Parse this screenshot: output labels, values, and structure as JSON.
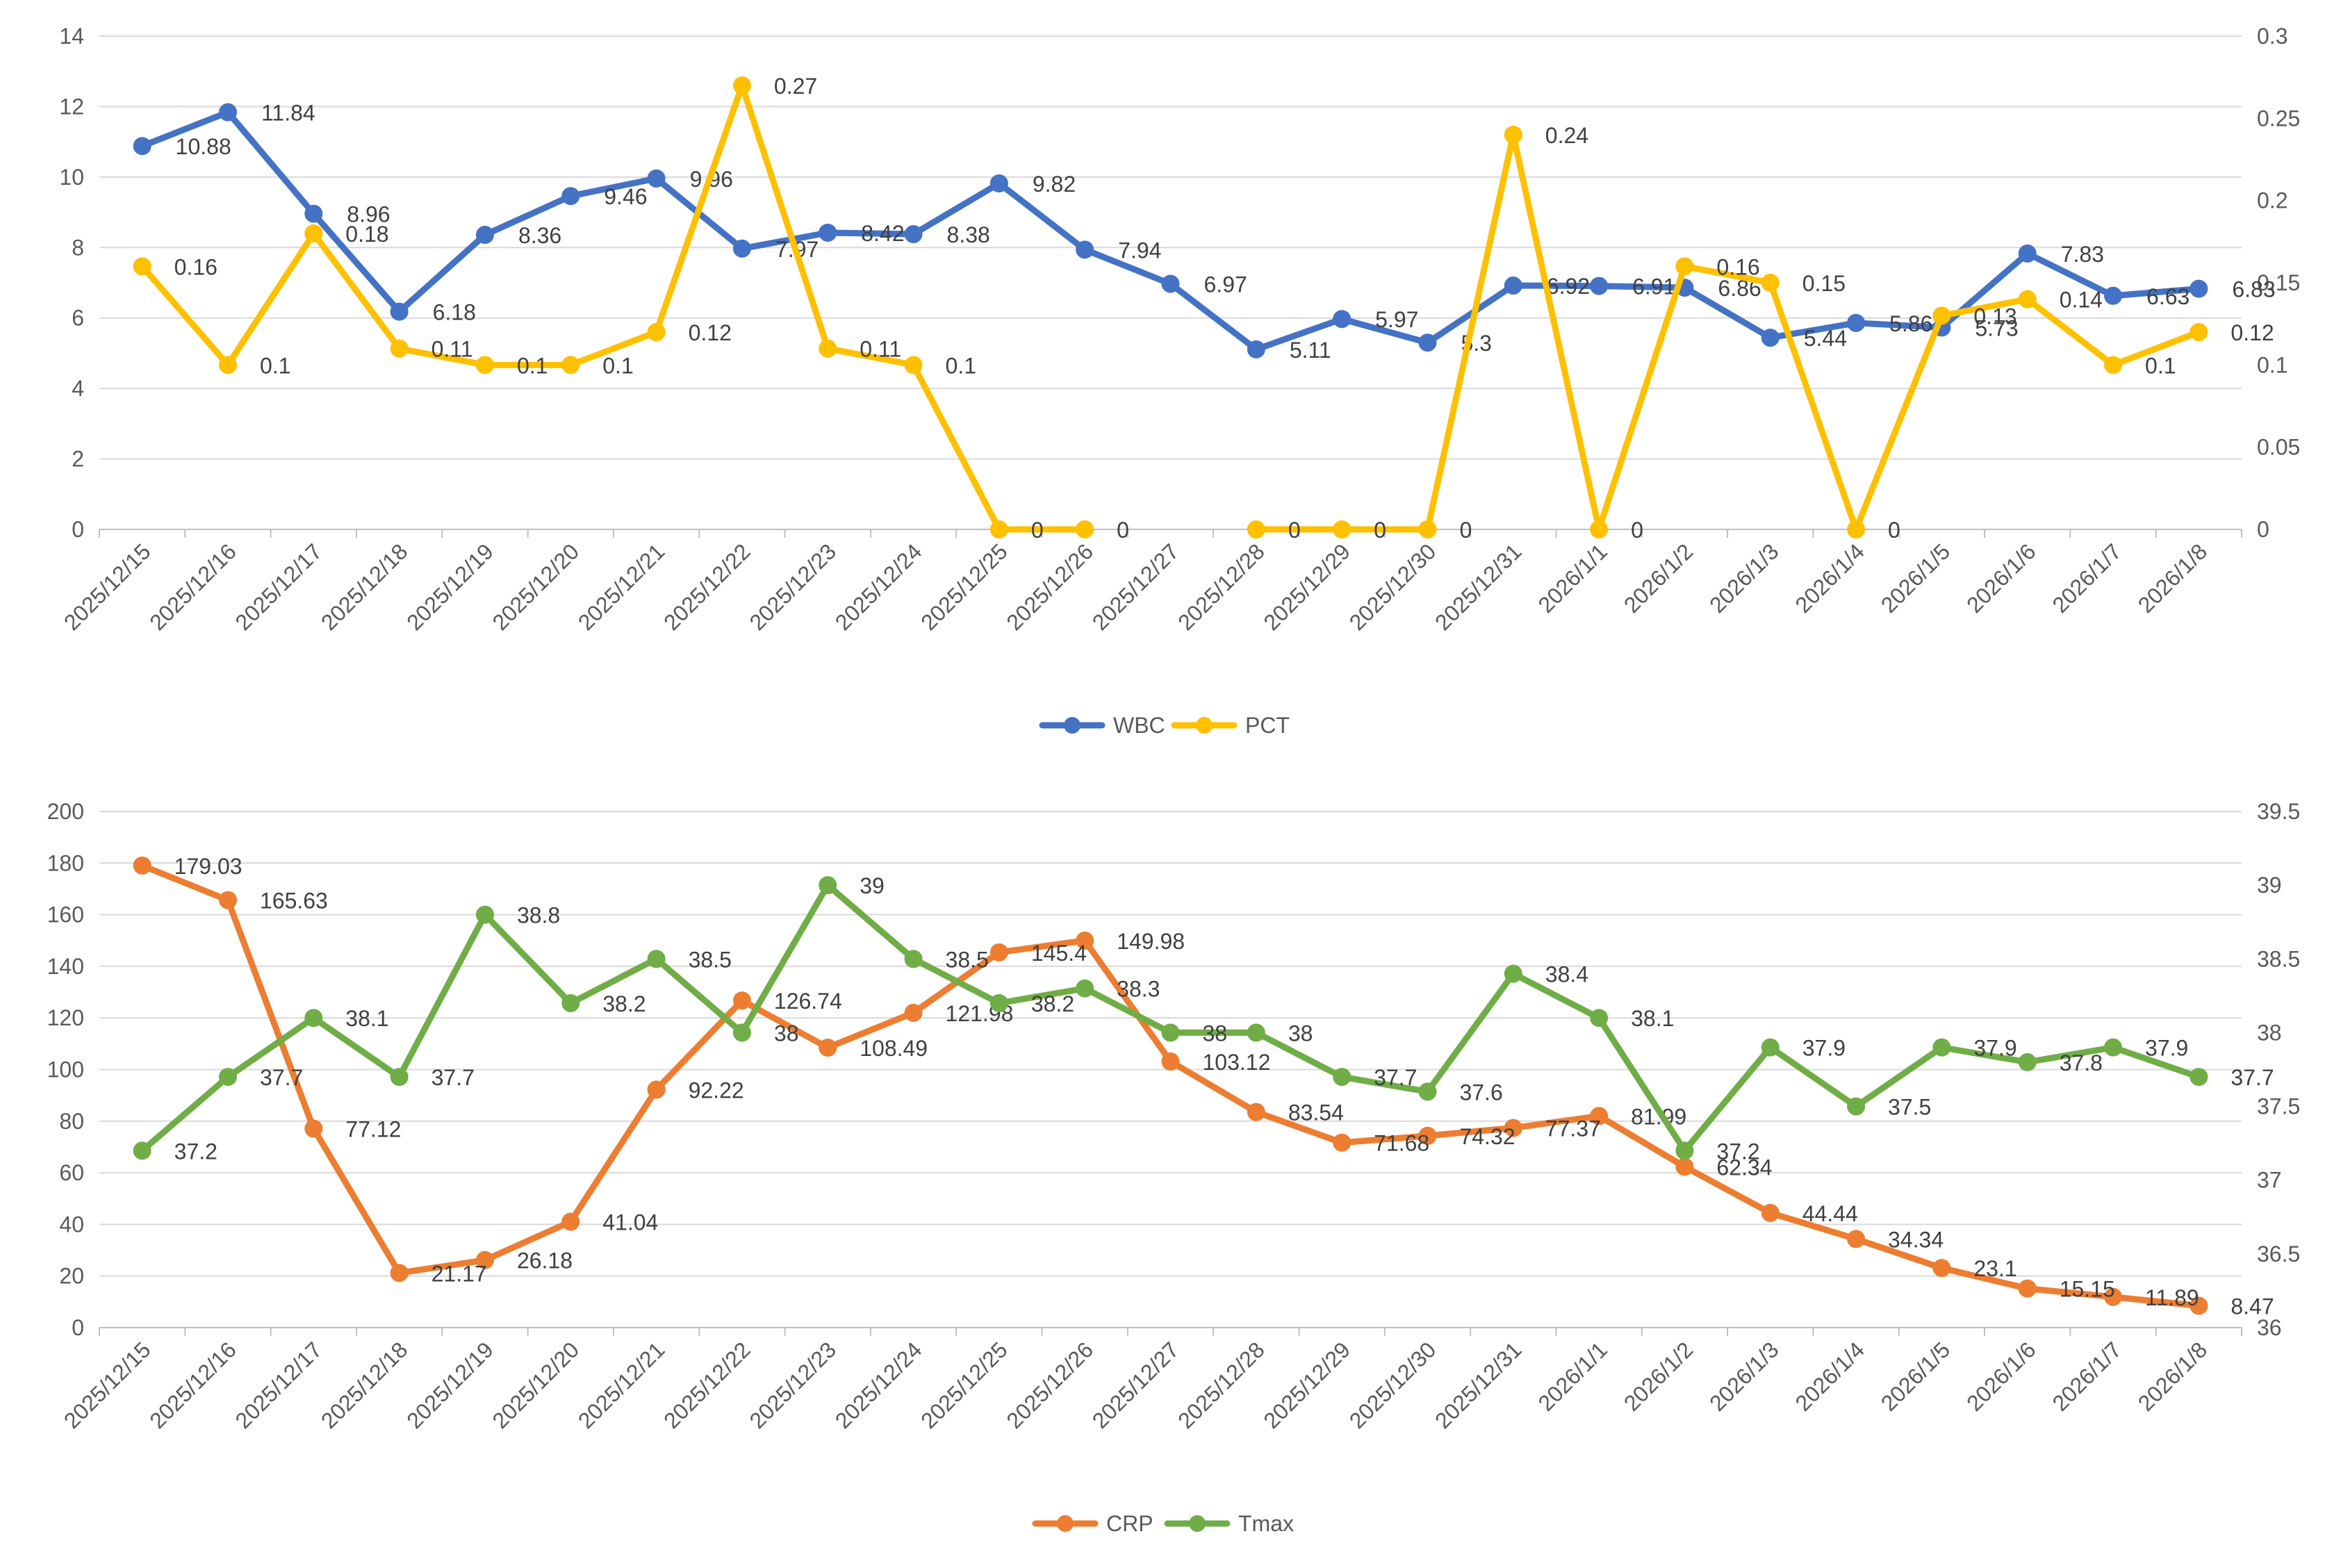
{
  "chart_data": [
    {
      "type": "line",
      "title": "",
      "categories": [
        "2025/12/15",
        "2025/12/16",
        "2025/12/17",
        "2025/12/18",
        "2025/12/19",
        "2025/12/20",
        "2025/12/21",
        "2025/12/22",
        "2025/12/23",
        "2025/12/24",
        "2025/12/25",
        "2025/12/26",
        "2025/12/27",
        "2025/12/28",
        "2025/12/29",
        "2025/12/30",
        "2025/12/31",
        "2026/1/1",
        "2026/1/2",
        "2026/1/3",
        "2026/1/4",
        "2026/1/5",
        "2026/1/6",
        "2026/1/7",
        "2026/1/8"
      ],
      "y_left": {
        "min": 0,
        "max": 14,
        "step": 2,
        "ticks": [
          "0",
          "2",
          "4",
          "6",
          "8",
          "10",
          "12",
          "14"
        ]
      },
      "y_right": {
        "min": 0,
        "max": 0.3,
        "step": 0.05,
        "ticks": [
          "0",
          "0.05",
          "0.1",
          "0.15",
          "0.2",
          "0.25",
          "0.3"
        ]
      },
      "grid": true,
      "legend_position": "bottom",
      "series": [
        {
          "name": "WBC",
          "axis": "left",
          "color": "#4472C4",
          "values": [
            10.88,
            11.84,
            8.96,
            6.18,
            8.36,
            9.46,
            9.96,
            7.97,
            8.42,
            8.38,
            9.82,
            7.94,
            6.97,
            5.11,
            5.97,
            5.3,
            6.92,
            6.91,
            6.86,
            5.44,
            5.86,
            5.73,
            7.83,
            6.63,
            6.83
          ],
          "labels": [
            "10.88",
            "11.84",
            "8.96",
            "6.18",
            "8.36",
            "9.46",
            "9.96",
            "7.97",
            "8.42",
            "8.38",
            "9.82",
            "7.94",
            "6.97",
            "5.11",
            "5.97",
            "5.3",
            "6.92",
            "6.91",
            "6.86",
            "5.44",
            "5.86",
            "5.73",
            "7.83",
            "6.63",
            "6.83"
          ]
        },
        {
          "name": "PCT",
          "axis": "right",
          "color": "#FFC000",
          "values": [
            0.16,
            0.1,
            0.18,
            0.11,
            0.1,
            0.1,
            0.12,
            0.27,
            0.11,
            0.1,
            0,
            0,
            null,
            0,
            0,
            0,
            0.24,
            0,
            0.16,
            0.15,
            0,
            0.13,
            0.14,
            0.1,
            0.12
          ],
          "labels": [
            "0.16",
            "0.1",
            "0.18",
            "0.11",
            "0.1",
            "0.1",
            "0.12",
            "0.27",
            "0.11",
            "0.1",
            "0",
            "0",
            null,
            "0",
            "0",
            "0",
            "0.24",
            "0",
            "0.16",
            "0.15",
            "0",
            "0.13",
            "0.14",
            "0.1",
            "0.12"
          ]
        }
      ]
    },
    {
      "type": "line",
      "title": "",
      "categories": [
        "2025/12/15",
        "2025/12/16",
        "2025/12/17",
        "2025/12/18",
        "2025/12/19",
        "2025/12/20",
        "2025/12/21",
        "2025/12/22",
        "2025/12/23",
        "2025/12/24",
        "2025/12/25",
        "2025/12/26",
        "2025/12/27",
        "2025/12/28",
        "2025/12/29",
        "2025/12/30",
        "2025/12/31",
        "2026/1/1",
        "2026/1/2",
        "2026/1/3",
        "2026/1/4",
        "2026/1/5",
        "2026/1/6",
        "2026/1/7",
        "2026/1/8"
      ],
      "y_left": {
        "min": 0,
        "max": 200,
        "step": 20,
        "ticks": [
          "0",
          "20",
          "40",
          "60",
          "80",
          "100",
          "120",
          "140",
          "160",
          "180",
          "200"
        ]
      },
      "y_right": {
        "min": 36,
        "max": 39.5,
        "step": 0.5,
        "ticks": [
          "36",
          "36.5",
          "37",
          "37.5",
          "38",
          "38.5",
          "39",
          "39.5"
        ]
      },
      "grid": true,
      "legend_position": "bottom",
      "series": [
        {
          "name": "CRP",
          "axis": "left",
          "color": "#ED7D31",
          "values": [
            179.03,
            165.63,
            77.12,
            21.17,
            26.18,
            41.04,
            92.22,
            126.74,
            108.49,
            121.98,
            145.4,
            149.98,
            103.12,
            83.54,
            71.68,
            74.32,
            77.37,
            81.99,
            62.34,
            44.44,
            34.34,
            23.1,
            15.15,
            11.89,
            8.47
          ],
          "labels": [
            "179.03",
            "165.63",
            "77.12",
            "21.17",
            "26.18",
            "41.04",
            "92.22",
            "126.74",
            "108.49",
            "121.98",
            "145.4",
            "149.98",
            "103.12",
            "83.54",
            "71.68",
            "74.32",
            "77.37",
            "81.99",
            "62.34",
            "44.44",
            "34.34",
            "23.1",
            "15.15",
            "11.89",
            "8.47"
          ]
        },
        {
          "name": "Tmax",
          "axis": "right",
          "color": "#70AD47",
          "values": [
            37.2,
            37.7,
            38.1,
            37.7,
            38.8,
            38.2,
            38.5,
            38,
            39,
            38.5,
            38.2,
            38.3,
            38,
            38,
            37.7,
            37.6,
            38.4,
            38.1,
            37.2,
            37.9,
            37.5,
            37.9,
            37.8,
            37.9,
            37.7
          ],
          "labels": [
            "37.2",
            "37.7",
            "38.1",
            "37.7",
            "38.8",
            "38.2",
            "38.5",
            "38",
            "39",
            "38.5",
            "38.2",
            "38.3",
            "38",
            "38",
            "37.7",
            "37.6",
            "38.4",
            "38.1",
            "37.2",
            "37.9",
            "37.5",
            "37.9",
            "37.8",
            "37.9",
            "37.7"
          ]
        }
      ]
    }
  ]
}
